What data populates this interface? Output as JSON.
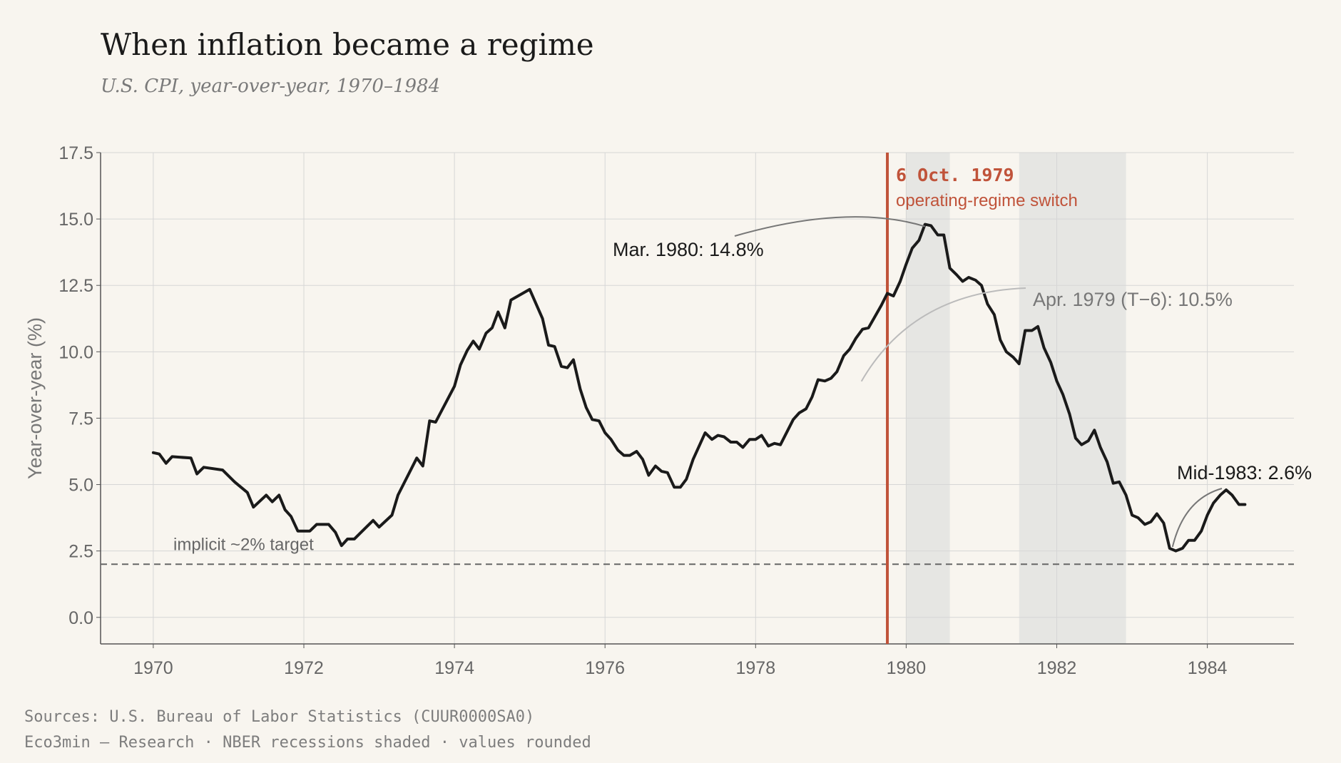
{
  "header": {
    "title": "When inflation became a regime",
    "subtitle": "U.S. CPI, year-over-year, 1970–1984"
  },
  "footer": {
    "sources": "Sources: U.S. Bureau of Labor Statistics (CUUR0000SA0)",
    "credits": "Eco3min — Research · NBER recessions shaded · values rounded"
  },
  "colors": {
    "background": "#f8f5ef",
    "line": "#1a1a1a",
    "accent": "#c0533a",
    "recession": "#e6e6e3",
    "grid": "#d6d6d6"
  },
  "chart_data": {
    "type": "line",
    "ylabel": "Year-over-year (%)",
    "xlim": [
      1969.3,
      1985.15
    ],
    "ylim": [
      -1.0,
      17.5
    ],
    "x_ticks": [
      1970,
      1972,
      1974,
      1976,
      1978,
      1980,
      1982,
      1984
    ],
    "x_tick_labels": [
      "1970",
      "1972",
      "1974",
      "1976",
      "1978",
      "1980",
      "1982",
      "1984"
    ],
    "y_ticks": [
      0,
      2.5,
      5,
      7.5,
      10,
      12.5,
      15,
      17.5
    ],
    "y_tick_labels": [
      "0.0",
      "2.5",
      "5.0",
      "7.5",
      "10.0",
      "12.5",
      "15.0",
      "17.5"
    ],
    "grid": true,
    "series": [
      {
        "points": [
          [
            1970.0,
            6.2
          ],
          [
            1970.08,
            6.15
          ],
          [
            1970.17,
            5.8
          ],
          [
            1970.25,
            6.05
          ],
          [
            1970.5,
            6.0
          ],
          [
            1970.58,
            5.4
          ],
          [
            1970.67,
            5.65
          ],
          [
            1970.92,
            5.55
          ],
          [
            1971.08,
            5.1
          ],
          [
            1971.25,
            4.7
          ],
          [
            1971.33,
            4.15
          ],
          [
            1971.5,
            4.6
          ],
          [
            1971.58,
            4.35
          ],
          [
            1971.67,
            4.6
          ],
          [
            1971.75,
            4.05
          ],
          [
            1971.83,
            3.8
          ],
          [
            1971.92,
            3.25
          ],
          [
            1972.0,
            3.25
          ],
          [
            1972.08,
            3.25
          ],
          [
            1972.17,
            3.5
          ],
          [
            1972.33,
            3.5
          ],
          [
            1972.42,
            3.2
          ],
          [
            1972.5,
            2.7
          ],
          [
            1972.58,
            2.95
          ],
          [
            1972.67,
            2.95
          ],
          [
            1972.92,
            3.65
          ],
          [
            1973.0,
            3.4
          ],
          [
            1973.17,
            3.85
          ],
          [
            1973.25,
            4.6
          ],
          [
            1973.5,
            6.0
          ],
          [
            1973.58,
            5.7
          ],
          [
            1973.67,
            7.4
          ],
          [
            1973.75,
            7.35
          ],
          [
            1974.0,
            8.7
          ],
          [
            1974.08,
            9.5
          ],
          [
            1974.17,
            10.05
          ],
          [
            1974.25,
            10.4
          ],
          [
            1974.33,
            10.1
          ],
          [
            1974.42,
            10.7
          ],
          [
            1974.5,
            10.9
          ],
          [
            1974.58,
            11.5
          ],
          [
            1974.67,
            10.9
          ],
          [
            1974.75,
            11.95
          ],
          [
            1975.0,
            12.35
          ],
          [
            1975.17,
            11.25
          ],
          [
            1975.25,
            10.25
          ],
          [
            1975.33,
            10.2
          ],
          [
            1975.42,
            9.45
          ],
          [
            1975.5,
            9.4
          ],
          [
            1975.58,
            9.7
          ],
          [
            1975.67,
            8.6
          ],
          [
            1975.75,
            7.9
          ],
          [
            1975.83,
            7.45
          ],
          [
            1975.92,
            7.4
          ],
          [
            1976.0,
            6.95
          ],
          [
            1976.08,
            6.7
          ],
          [
            1976.17,
            6.3
          ],
          [
            1976.25,
            6.1
          ],
          [
            1976.33,
            6.1
          ],
          [
            1976.42,
            6.25
          ],
          [
            1976.5,
            5.95
          ],
          [
            1976.58,
            5.35
          ],
          [
            1976.67,
            5.7
          ],
          [
            1976.75,
            5.5
          ],
          [
            1976.83,
            5.45
          ],
          [
            1976.92,
            4.9
          ],
          [
            1977.0,
            4.9
          ],
          [
            1977.08,
            5.2
          ],
          [
            1977.17,
            5.95
          ],
          [
            1977.33,
            6.95
          ],
          [
            1977.42,
            6.7
          ],
          [
            1977.5,
            6.85
          ],
          [
            1977.58,
            6.8
          ],
          [
            1977.67,
            6.6
          ],
          [
            1977.75,
            6.6
          ],
          [
            1977.83,
            6.4
          ],
          [
            1977.92,
            6.7
          ],
          [
            1978.0,
            6.7
          ],
          [
            1978.08,
            6.85
          ],
          [
            1978.17,
            6.45
          ],
          [
            1978.25,
            6.55
          ],
          [
            1978.33,
            6.5
          ],
          [
            1978.5,
            7.45
          ],
          [
            1978.58,
            7.7
          ],
          [
            1978.67,
            7.85
          ],
          [
            1978.75,
            8.3
          ],
          [
            1978.83,
            8.95
          ],
          [
            1978.92,
            8.9
          ],
          [
            1979.0,
            9.0
          ],
          [
            1979.08,
            9.25
          ],
          [
            1979.17,
            9.85
          ],
          [
            1979.25,
            10.1
          ],
          [
            1979.33,
            10.5
          ],
          [
            1979.42,
            10.85
          ],
          [
            1979.5,
            10.9
          ],
          [
            1979.58,
            11.3
          ],
          [
            1979.67,
            11.75
          ],
          [
            1979.75,
            12.2
          ],
          [
            1979.83,
            12.1
          ],
          [
            1979.92,
            12.65
          ],
          [
            1980.0,
            13.3
          ],
          [
            1980.08,
            13.9
          ],
          [
            1980.17,
            14.2
          ],
          [
            1980.25,
            14.8
          ],
          [
            1980.33,
            14.75
          ],
          [
            1980.42,
            14.4
          ],
          [
            1980.5,
            14.4
          ],
          [
            1980.58,
            13.15
          ],
          [
            1980.67,
            12.9
          ],
          [
            1980.75,
            12.65
          ],
          [
            1980.83,
            12.8
          ],
          [
            1980.92,
            12.7
          ],
          [
            1981.0,
            12.5
          ],
          [
            1981.08,
            11.8
          ],
          [
            1981.17,
            11.4
          ],
          [
            1981.25,
            10.45
          ],
          [
            1981.33,
            10.0
          ],
          [
            1981.42,
            9.8
          ],
          [
            1981.5,
            9.55
          ],
          [
            1981.58,
            10.8
          ],
          [
            1981.67,
            10.8
          ],
          [
            1981.75,
            10.95
          ],
          [
            1981.83,
            10.15
          ],
          [
            1981.92,
            9.6
          ],
          [
            1982.0,
            8.9
          ],
          [
            1982.08,
            8.4
          ],
          [
            1982.17,
            7.65
          ],
          [
            1982.25,
            6.75
          ],
          [
            1982.33,
            6.5
          ],
          [
            1982.42,
            6.65
          ],
          [
            1982.5,
            7.05
          ],
          [
            1982.58,
            6.4
          ],
          [
            1982.67,
            5.85
          ],
          [
            1982.75,
            5.05
          ],
          [
            1982.83,
            5.1
          ],
          [
            1982.92,
            4.6
          ],
          [
            1983.0,
            3.85
          ],
          [
            1983.08,
            3.75
          ],
          [
            1983.17,
            3.5
          ],
          [
            1983.25,
            3.6
          ],
          [
            1983.33,
            3.9
          ],
          [
            1983.42,
            3.55
          ],
          [
            1983.5,
            2.6
          ],
          [
            1983.58,
            2.5
          ],
          [
            1983.67,
            2.6
          ],
          [
            1983.75,
            2.9
          ],
          [
            1983.83,
            2.9
          ],
          [
            1983.92,
            3.25
          ],
          [
            1984.0,
            3.85
          ],
          [
            1984.08,
            4.3
          ],
          [
            1984.17,
            4.6
          ],
          [
            1984.25,
            4.8
          ],
          [
            1984.33,
            4.6
          ],
          [
            1984.42,
            4.25
          ],
          [
            1984.5,
            4.25
          ]
        ]
      }
    ],
    "recessions": [
      [
        1980.0,
        1980.58
      ],
      [
        1981.5,
        1982.92
      ]
    ],
    "event_line": {
      "x": 1979.75,
      "date_label": "6 Oct. 1979",
      "label": "operating-regime switch"
    },
    "reference_line": {
      "y": 2.0,
      "label": "implicit ~2% target"
    },
    "annotations": [
      {
        "name": "peak",
        "text": "Mar. 1980: 14.8%",
        "x": 1980.25,
        "y": 14.8
      },
      {
        "name": "t-minus-6",
        "text": "Apr. 1979 (T−6): 10.5%",
        "x": 1979.33,
        "y": 10.5
      },
      {
        "name": "trough",
        "text": "Mid-1983: 2.6%",
        "x": 1983.5,
        "y": 2.6
      }
    ]
  }
}
